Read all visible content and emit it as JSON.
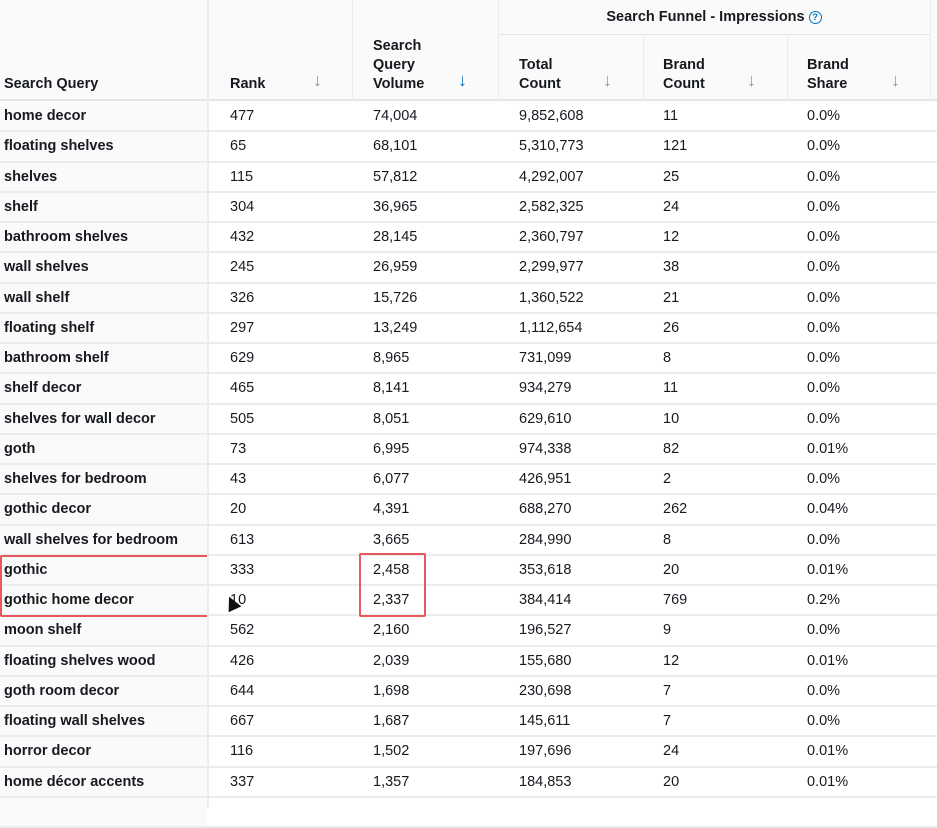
{
  "columns": {
    "query": "Search Query",
    "rank": "Rank",
    "sqv": [
      "Search",
      "Query",
      "Volume"
    ],
    "group": "Search Funnel - Impressions",
    "total": [
      "Total",
      "Count"
    ],
    "brand_count": [
      "Brand",
      "Count"
    ],
    "brand_share": [
      "Brand",
      "Share"
    ]
  },
  "help_icon": "?",
  "colors": {
    "accent": "#0073bb",
    "highlight": "#e8595c"
  },
  "rows": [
    [
      "home decor",
      "477",
      "74,004",
      "9,852,608",
      "11",
      "0.0%"
    ],
    [
      "floating shelves",
      "65",
      "68,101",
      "5,310,773",
      "121",
      "0.0%"
    ],
    [
      "shelves",
      "115",
      "57,812",
      "4,292,007",
      "25",
      "0.0%"
    ],
    [
      "shelf",
      "304",
      "36,965",
      "2,582,325",
      "24",
      "0.0%"
    ],
    [
      "bathroom shelves",
      "432",
      "28,145",
      "2,360,797",
      "12",
      "0.0%"
    ],
    [
      "wall shelves",
      "245",
      "26,959",
      "2,299,977",
      "38",
      "0.0%"
    ],
    [
      "wall shelf",
      "326",
      "15,726",
      "1,360,522",
      "21",
      "0.0%"
    ],
    [
      "floating shelf",
      "297",
      "13,249",
      "1,112,654",
      "26",
      "0.0%"
    ],
    [
      "bathroom shelf",
      "629",
      "8,965",
      "731,099",
      "8",
      "0.0%"
    ],
    [
      "shelf decor",
      "465",
      "8,141",
      "934,279",
      "11",
      "0.0%"
    ],
    [
      "shelves for wall decor",
      "505",
      "8,051",
      "629,610",
      "10",
      "0.0%"
    ],
    [
      "goth",
      "73",
      "6,995",
      "974,338",
      "82",
      "0.01%"
    ],
    [
      "shelves for bedroom",
      "43",
      "6,077",
      "426,951",
      "2",
      "0.0%"
    ],
    [
      "gothic decor",
      "20",
      "4,391",
      "688,270",
      "262",
      "0.04%"
    ],
    [
      "wall shelves for bedroom",
      "613",
      "3,665",
      "284,990",
      "8",
      "0.0%"
    ],
    [
      "gothic",
      "333",
      "2,458",
      "353,618",
      "20",
      "0.01%"
    ],
    [
      "gothic home decor",
      "10",
      "2,337",
      "384,414",
      "769",
      "0.2%"
    ],
    [
      "moon shelf",
      "562",
      "2,160",
      "196,527",
      "9",
      "0.0%"
    ],
    [
      "floating shelves wood",
      "426",
      "2,039",
      "155,680",
      "12",
      "0.01%"
    ],
    [
      "goth room decor",
      "644",
      "1,698",
      "230,698",
      "7",
      "0.0%"
    ],
    [
      "floating wall shelves",
      "667",
      "1,687",
      "145,611",
      "7",
      "0.0%"
    ],
    [
      "horror decor",
      "116",
      "1,502",
      "197,696",
      "24",
      "0.01%"
    ],
    [
      "home décor accents",
      "337",
      "1,357",
      "184,853",
      "20",
      "0.01%"
    ]
  ]
}
